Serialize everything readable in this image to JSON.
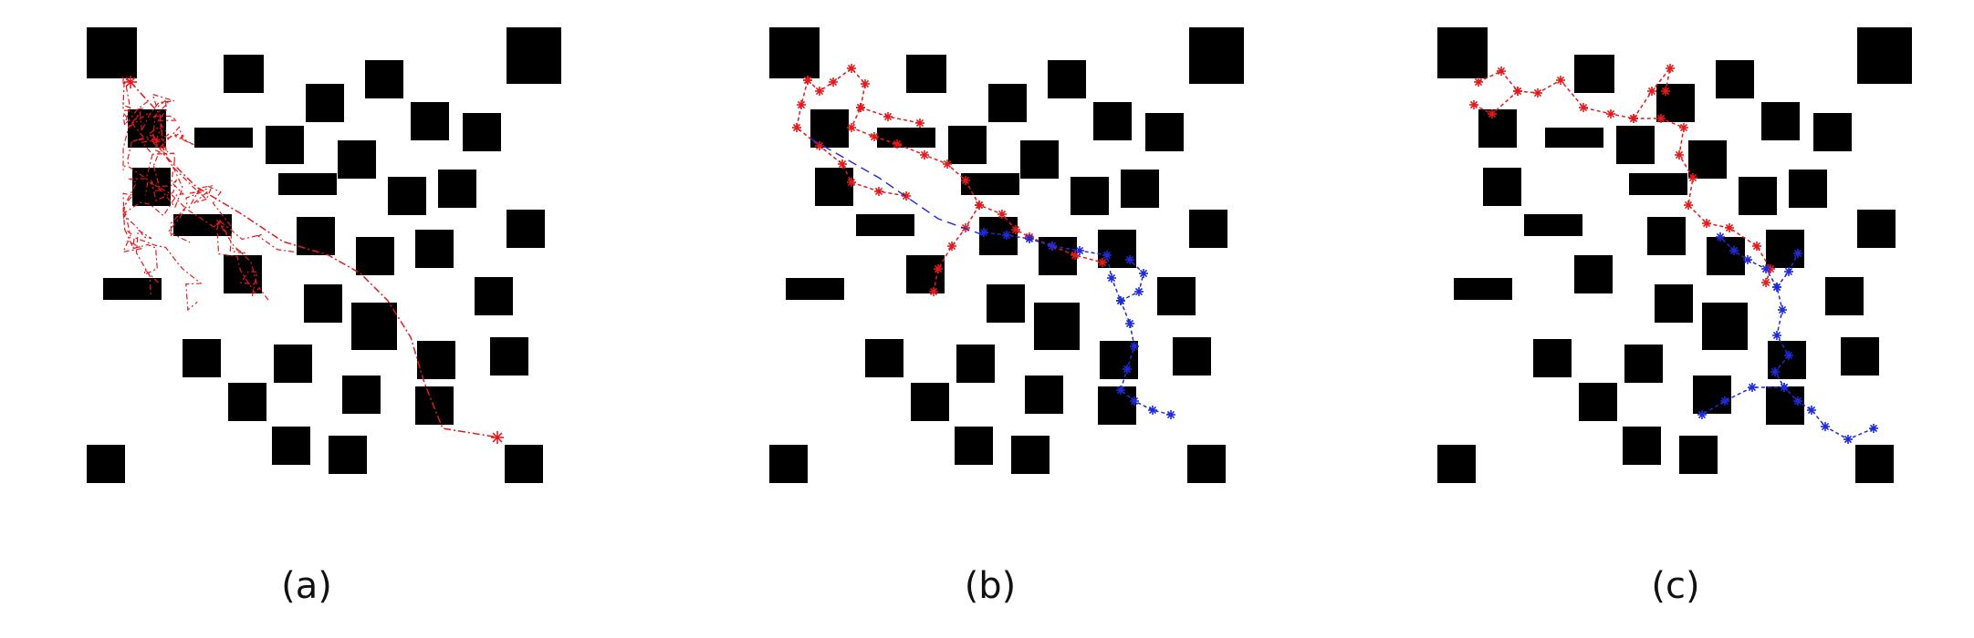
{
  "colors": {
    "obstacle": "#000000",
    "tree_a": "#e41a1c",
    "tree_start": "#e41a1c",
    "tree_goal": "#1f2bd8",
    "connection": "#1f2bd8"
  },
  "panels": [
    {
      "id": "a",
      "caption": "(a)"
    },
    {
      "id": "b",
      "caption": "(b)"
    },
    {
      "id": "c",
      "caption": "(c)"
    }
  ]
}
